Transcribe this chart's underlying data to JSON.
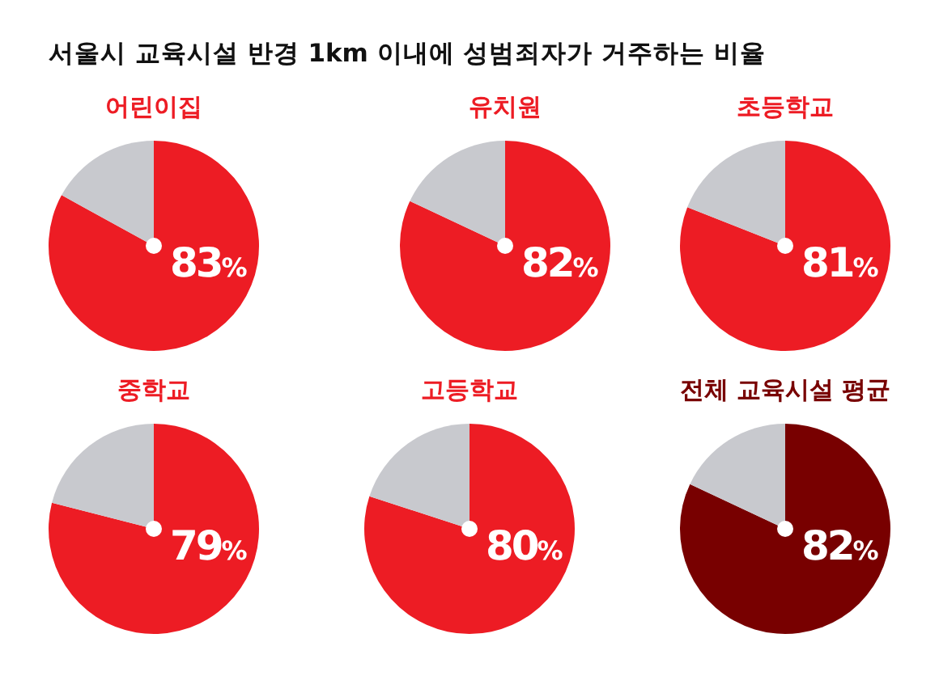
{
  "chart_data": [
    {
      "type": "other",
      "title": "서울시 교육시설 반경 1km 이내에 성범죄자가 거주하는 비율"
    },
    {
      "type": "pie",
      "title": "어린이집",
      "categories": [
        null,
        null
      ],
      "values": [
        83,
        17
      ],
      "colors": [
        "#ed1c24",
        "#c8c9ce"
      ],
      "value_labels": [
        "83%",
        null
      ]
    },
    {
      "type": "pie",
      "title": "유치원",
      "categories": [
        null,
        null
      ],
      "values": [
        82,
        18
      ],
      "colors": [
        "#ed1c24",
        "#c8c9ce"
      ],
      "value_labels": [
        "82%",
        null
      ]
    },
    {
      "type": "pie",
      "title": "초등학교",
      "categories": [
        null,
        null
      ],
      "values": [
        81,
        19
      ],
      "colors": [
        "#ed1c24",
        "#c8c9ce"
      ],
      "value_labels": [
        "81%",
        null
      ]
    },
    {
      "type": "pie",
      "title": "중학교",
      "categories": [
        null,
        null
      ],
      "values": [
        79,
        21
      ],
      "colors": [
        "#ed1c24",
        "#c8c9ce"
      ],
      "value_labels": [
        "79%",
        null
      ]
    },
    {
      "type": "pie",
      "title": "고등학교",
      "categories": [
        null,
        null
      ],
      "values": [
        80,
        20
      ],
      "colors": [
        "#ed1c24",
        "#c8c9ce"
      ],
      "value_labels": [
        "80%",
        null
      ]
    },
    {
      "type": "pie",
      "title": "전체 교육시설 평균",
      "categories": [
        null,
        null
      ],
      "values": [
        82,
        18
      ],
      "colors": [
        "#780000",
        "#c8c9ce"
      ],
      "value_labels": [
        "82%",
        null
      ]
    }
  ]
}
